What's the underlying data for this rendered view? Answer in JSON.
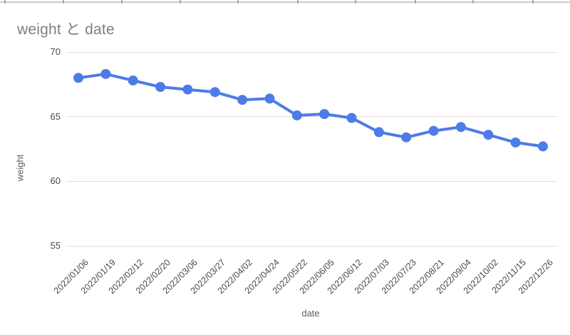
{
  "chart_data": {
    "type": "line",
    "title": "weight と date",
    "xlabel": "date",
    "ylabel": "weight",
    "x": [
      "2022/01/06",
      "2022/01/19",
      "2022/02/12",
      "2022/02/20",
      "2022/03/06",
      "2022/03/27",
      "2022/04/02",
      "2022/04/24",
      "2022/05/22",
      "2022/06/05",
      "2022/06/12",
      "2022/07/03",
      "2022/07/23",
      "2022/08/21",
      "2022/09/04",
      "2022/10/02",
      "2022/11/15",
      "2022/12/26"
    ],
    "series": [
      {
        "name": "weight",
        "values": [
          68.0,
          68.3,
          67.8,
          67.3,
          67.1,
          66.9,
          66.3,
          66.4,
          65.1,
          65.2,
          64.9,
          63.8,
          63.4,
          63.9,
          64.2,
          63.6,
          63.0,
          62.7
        ]
      }
    ],
    "yticks": [
      70,
      65,
      60,
      55
    ],
    "ylim": [
      55,
      70
    ],
    "grid": true,
    "legend_position": "none",
    "colors": {
      "series": "#4d7ce8",
      "gridline": "#e0e0e0",
      "tick_text": "#4a4a4a",
      "axis_title_text": "#5c5c5c",
      "chart_title_text": "#7e7e7e"
    }
  }
}
